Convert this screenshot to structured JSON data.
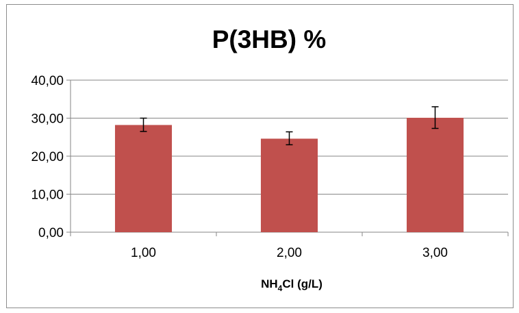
{
  "chart_data": {
    "type": "bar",
    "title": "P(3HB) %",
    "xlabel": {
      "prefix": "NH",
      "subscript": "4",
      "suffix": "Cl (g/L)"
    },
    "ylabel": "",
    "categories": [
      "1,00",
      "2,00",
      "3,00"
    ],
    "values": [
      28.2,
      24.6,
      30.1
    ],
    "error_low": [
      26.5,
      23.0,
      27.3
    ],
    "error_high": [
      30.0,
      26.4,
      33.0
    ],
    "ylim": [
      0,
      40
    ],
    "yticks": [
      0,
      10,
      20,
      30,
      40
    ],
    "ytick_labels": [
      "0,00",
      "10,00",
      "20,00",
      "30,00",
      "40,00"
    ],
    "grid": true,
    "legend": "none",
    "colors": {
      "bar": "#c0504d",
      "grid": "#868686",
      "axis": "#868686",
      "error": "#000000"
    }
  }
}
